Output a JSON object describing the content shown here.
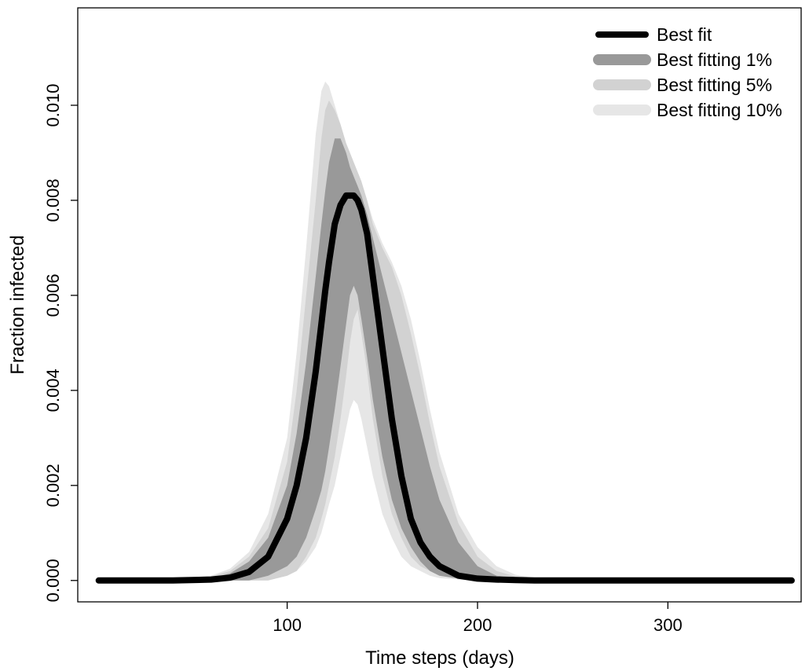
{
  "chart_data": {
    "type": "area",
    "title": "",
    "xlabel": "Time steps (days)",
    "ylabel": "Fraction infected",
    "xlim": [
      -10,
      370
    ],
    "ylim": [
      -0.00045,
      0.01205
    ],
    "x_ticks": [
      100,
      200,
      300
    ],
    "y_ticks": [
      0.0,
      0.002,
      0.004,
      0.006,
      0.008,
      0.01
    ],
    "y_tick_labels": [
      "0.000",
      "0.002",
      "0.004",
      "0.006",
      "0.008",
      "0.010"
    ],
    "grid": false,
    "legend_position": "top-right",
    "x": [
      1,
      40,
      60,
      70,
      80,
      90,
      100,
      105,
      110,
      115,
      118,
      120,
      122,
      125,
      128,
      131,
      133,
      135,
      137,
      139,
      142,
      145,
      150,
      155,
      160,
      165,
      170,
      175,
      180,
      190,
      200,
      210,
      220,
      230,
      250,
      280,
      365
    ],
    "series": [
      {
        "name": "Best fitting 10%",
        "color": "#e6e6e6",
        "lower": [
          0,
          0,
          0,
          0,
          0,
          0,
          0.0001,
          0.0002,
          0.0004,
          0.0007,
          0.001,
          0.0013,
          0.0016,
          0.002,
          0.0026,
          0.0032,
          0.0036,
          0.0038,
          0.0037,
          0.0034,
          0.0028,
          0.0022,
          0.0014,
          0.0009,
          0.0005,
          0.0003,
          0.0002,
          0.0001,
          5e-05,
          2e-05,
          0,
          0,
          0,
          0,
          0,
          0,
          0
        ],
        "upper": [
          0,
          2e-05,
          0.0001,
          0.00025,
          0.0006,
          0.0014,
          0.003,
          0.0048,
          0.007,
          0.0094,
          0.0103,
          0.0105,
          0.0104,
          0.01,
          0.0096,
          0.0092,
          0.009,
          0.0088,
          0.0086,
          0.0084,
          0.008,
          0.0076,
          0.0071,
          0.0067,
          0.0062,
          0.0055,
          0.0046,
          0.0036,
          0.0027,
          0.0014,
          0.0007,
          0.0003,
          0.00012,
          5e-05,
          1e-05,
          0,
          0
        ]
      },
      {
        "name": "Best fitting 5%",
        "color": "#d2d2d2",
        "lower": [
          0,
          0,
          0,
          0,
          0,
          0,
          0.0001,
          0.0002,
          0.0005,
          0.0009,
          0.0013,
          0.0016,
          0.002,
          0.0026,
          0.0034,
          0.0043,
          0.005,
          0.0055,
          0.0057,
          0.0052,
          0.0044,
          0.0034,
          0.0022,
          0.0014,
          0.0009,
          0.0005,
          0.0003,
          0.0002,
          0.0001,
          4e-05,
          1e-05,
          0,
          0,
          0,
          0,
          0,
          0
        ],
        "upper": [
          0,
          1e-05,
          8e-05,
          0.0002,
          0.0005,
          0.0011,
          0.0025,
          0.004,
          0.006,
          0.008,
          0.0093,
          0.0099,
          0.0101,
          0.0099,
          0.0096,
          0.0092,
          0.009,
          0.0088,
          0.0086,
          0.0084,
          0.008,
          0.0075,
          0.007,
          0.0066,
          0.006,
          0.0052,
          0.0043,
          0.0033,
          0.0024,
          0.0012,
          0.0005,
          0.0002,
          8e-05,
          3e-05,
          0,
          0,
          0
        ]
      },
      {
        "name": "Best fitting 1%",
        "color": "#999999",
        "lower": [
          0,
          0,
          0,
          0,
          0,
          0.0001,
          0.0003,
          0.0005,
          0.0009,
          0.0015,
          0.0019,
          0.0023,
          0.0028,
          0.0036,
          0.0045,
          0.0054,
          0.006,
          0.0062,
          0.006,
          0.0055,
          0.0047,
          0.0038,
          0.0026,
          0.0017,
          0.0011,
          0.0007,
          0.0004,
          0.0002,
          0.0001,
          4e-05,
          1e-05,
          0,
          0,
          0,
          0,
          0,
          0
        ],
        "upper": [
          0,
          0,
          5e-05,
          0.00015,
          0.0004,
          0.0009,
          0.002,
          0.0031,
          0.0046,
          0.0064,
          0.0075,
          0.0082,
          0.0088,
          0.0093,
          0.0093,
          0.009,
          0.0087,
          0.0085,
          0.0083,
          0.0081,
          0.0077,
          0.0072,
          0.0064,
          0.0056,
          0.0048,
          0.004,
          0.0032,
          0.0024,
          0.0017,
          0.0008,
          0.0003,
          0.0001,
          4e-05,
          1e-05,
          0,
          0,
          0
        ]
      },
      {
        "name": "Best fit",
        "color": "#000000",
        "values": [
          0,
          0,
          2e-05,
          6e-05,
          0.00018,
          0.0005,
          0.0013,
          0.002,
          0.003,
          0.0044,
          0.0054,
          0.0061,
          0.0067,
          0.0075,
          0.0079,
          0.0081,
          0.0081,
          0.0081,
          0.008,
          0.0078,
          0.0073,
          0.0064,
          0.0049,
          0.0034,
          0.0022,
          0.0013,
          0.0008,
          0.0005,
          0.0003,
          0.0001,
          4e-05,
          2e-05,
          1e-05,
          0,
          0,
          0,
          0
        ]
      }
    ],
    "legend": [
      "Best fit",
      "Best fitting 1%",
      "Best fitting 5%",
      "Best fitting 10%"
    ]
  }
}
